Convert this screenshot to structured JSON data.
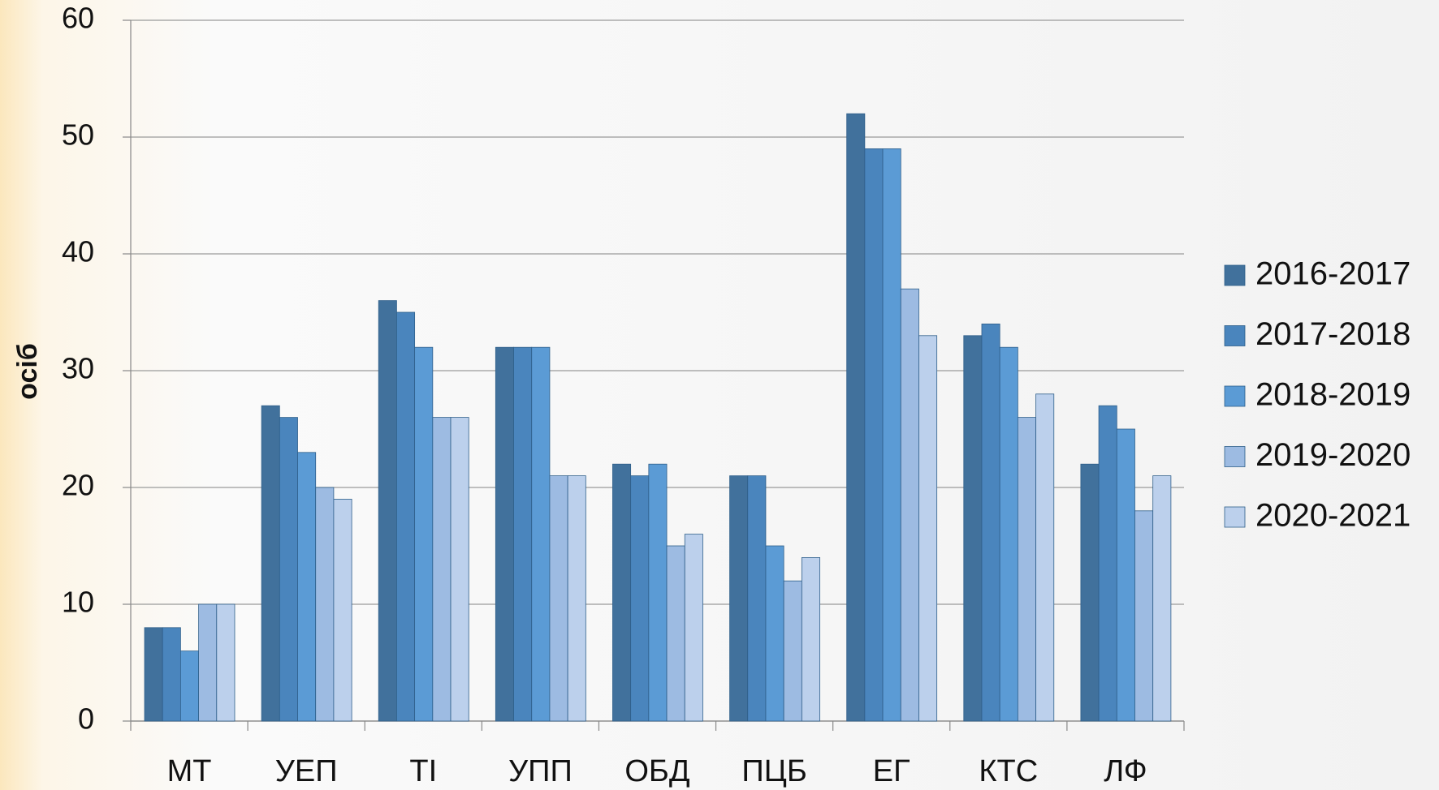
{
  "chart_data": {
    "type": "bar",
    "ylabel": "осіб",
    "categories": [
      "МТ",
      "УЕП",
      "ТІ",
      "УПП",
      "ОБД",
      "ПЦБ",
      "ЕГ",
      "КТС",
      "ЛФ"
    ],
    "series": [
      {
        "name": "2016-2017",
        "color": "#41719c",
        "values": [
          8,
          27,
          36,
          32,
          22,
          21,
          52,
          33,
          22
        ]
      },
      {
        "name": "2017-2018",
        "color": "#4a85bd",
        "values": [
          8,
          26,
          35,
          32,
          21,
          21,
          49,
          34,
          27
        ]
      },
      {
        "name": "2018-2019",
        "color": "#5b9bd5",
        "values": [
          6,
          23,
          32,
          32,
          22,
          15,
          49,
          32,
          25
        ]
      },
      {
        "name": "2019-2020",
        "color": "#9dbbe2",
        "values": [
          10,
          20,
          26,
          21,
          15,
          12,
          37,
          26,
          18
        ]
      },
      {
        "name": "2020-2021",
        "color": "#bcd0ec",
        "values": [
          10,
          19,
          26,
          21,
          16,
          14,
          33,
          28,
          21
        ]
      }
    ],
    "ylim": [
      0,
      60
    ],
    "yticks": [
      0,
      10,
      20,
      30,
      40,
      50,
      60
    ],
    "grid": true,
    "legend": "right"
  }
}
